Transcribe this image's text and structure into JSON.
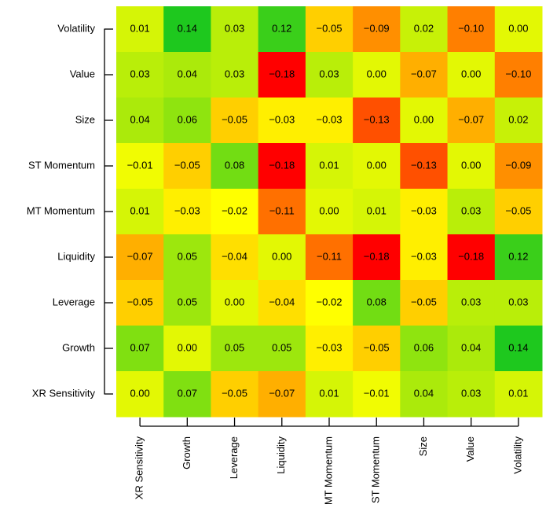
{
  "chart_data": {
    "type": "heatmap",
    "categories": [
      "XR Sensitivity",
      "Growth",
      "Leverage",
      "Liquidity",
      "MT Momentum",
      "ST Momentum",
      "Size",
      "Value",
      "Volatility"
    ],
    "y_categories": [
      "Volatility",
      "Value",
      "Size",
      "ST Momentum",
      "MT Momentum",
      "Liquidity",
      "Leverage",
      "Growth",
      "XR Sensitivity"
    ],
    "values": [
      [
        0.01,
        0.14,
        0.03,
        0.12,
        -0.05,
        -0.09,
        0.02,
        -0.1,
        0.0
      ],
      [
        0.03,
        0.04,
        0.03,
        -0.18,
        0.03,
        0.0,
        -0.07,
        0.0,
        -0.1
      ],
      [
        0.04,
        0.06,
        -0.05,
        -0.03,
        -0.03,
        -0.13,
        0.0,
        -0.07,
        0.02
      ],
      [
        -0.01,
        -0.05,
        0.08,
        -0.18,
        0.01,
        0.0,
        -0.13,
        0.0,
        -0.09
      ],
      [
        0.01,
        -0.03,
        -0.02,
        -0.11,
        0.0,
        0.01,
        -0.03,
        0.03,
        -0.05
      ],
      [
        -0.07,
        0.05,
        -0.04,
        0.0,
        -0.11,
        -0.18,
        -0.03,
        -0.18,
        0.12
      ],
      [
        -0.05,
        0.05,
        0.0,
        -0.04,
        -0.02,
        0.08,
        -0.05,
        0.03,
        0.03
      ],
      [
        0.07,
        0.0,
        0.05,
        0.05,
        -0.03,
        -0.05,
        0.06,
        0.04,
        0.14
      ],
      [
        0.0,
        0.07,
        -0.05,
        -0.07,
        0.01,
        -0.01,
        0.04,
        0.03,
        0.01
      ]
    ],
    "value_labels": [
      [
        "0.01",
        "0.14",
        "0.03",
        "0.12",
        "−0.05",
        "−0.09",
        "0.02",
        "−0.10",
        "0.00"
      ],
      [
        "0.03",
        "0.04",
        "0.03",
        "−0.18",
        "0.03",
        "0.00",
        "−0.07",
        "0.00",
        "−0.10"
      ],
      [
        "0.04",
        "0.06",
        "−0.05",
        "−0.03",
        "−0.03",
        "−0.13",
        "0.00",
        "−0.07",
        "0.02"
      ],
      [
        "−0.01",
        "−0.05",
        "0.08",
        "−0.18",
        "0.01",
        "0.00",
        "−0.13",
        "0.00",
        "−0.09"
      ],
      [
        "0.01",
        "−0.03",
        "−0.02",
        "−0.11",
        "0.00",
        "0.01",
        "−0.03",
        "0.03",
        "−0.05"
      ],
      [
        "−0.07",
        "0.05",
        "−0.04",
        "0.00",
        "−0.11",
        "−0.18",
        "−0.03",
        "−0.18",
        "0.12"
      ],
      [
        "−0.05",
        "0.05",
        "0.00",
        "−0.04",
        "−0.02",
        "0.08",
        "−0.05",
        "0.03",
        "0.03"
      ],
      [
        "0.07",
        "0.00",
        "0.05",
        "0.05",
        "−0.03",
        "−0.05",
        "0.06",
        "0.04",
        "0.14"
      ],
      [
        "0.00",
        "0.07",
        "−0.05",
        "−0.07",
        "0.01",
        "−0.01",
        "0.04",
        "0.03",
        "0.01"
      ]
    ],
    "vlim": [
      -0.18,
      0.14
    ],
    "colors": [
      "#ff0000",
      "#ffff00",
      "#1ec81e"
    ]
  }
}
